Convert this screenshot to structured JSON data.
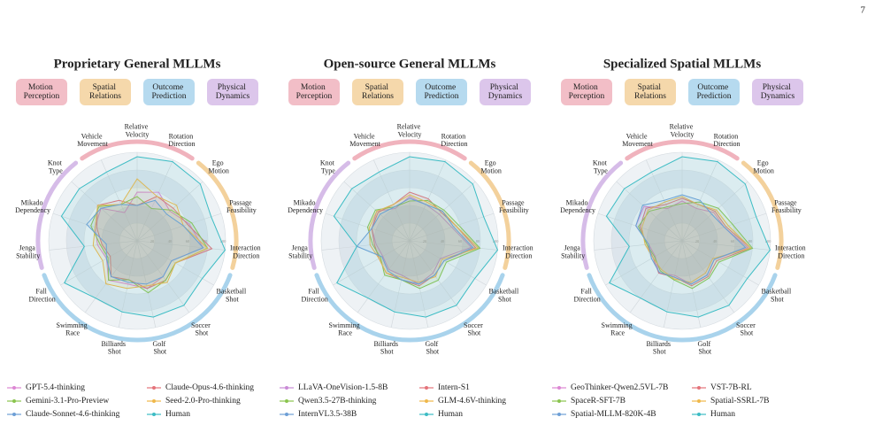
{
  "page_number": "7",
  "chart_data": [
    {
      "type": "radar",
      "title": "Proprietary General MLLMs",
      "groups": [
        {
          "name": "Motion Perception",
          "color": "#f0b3bd",
          "axes": [
            "Vehicle Movement",
            "Relative Velocity",
            "Rotation Direction"
          ]
        },
        {
          "name": "Spatial Relations",
          "color": "#f3d19c",
          "axes": [
            "Ego Motion",
            "Passage Feasibility",
            "Interaction Direction"
          ]
        },
        {
          "name": "Outcome Prediction",
          "color": "#a9d3ec",
          "axes": [
            "Basketball Shot",
            "Soccer Shot",
            "Golf Shot",
            "Billiards Shot",
            "Swimming Race",
            "Fall Direction"
          ]
        },
        {
          "name": "Physical Dynamics",
          "color": "#d6bce8",
          "axes": [
            "Jenga Stability",
            "Mikado Dependency",
            "Knot Type"
          ]
        }
      ],
      "categories": [
        "Relative Velocity",
        "Rotation Direction",
        "Ego Motion",
        "Passage Feasibility",
        "Interaction Direction",
        "Basketball Shot",
        "Soccer Shot",
        "Golf Shot",
        "Billiards Shot",
        "Swimming Race",
        "Fall Direction",
        "Jenga Stability",
        "Mikado Dependency",
        "Knot Type",
        "Vehicle Movement"
      ],
      "rlim": [
        0,
        100
      ],
      "rticks": [
        20,
        40,
        60,
        80,
        100
      ],
      "series": [
        {
          "name": "GPT-5.4-thinking",
          "color": "#dc86d3",
          "values": [
            55,
            60,
            50,
            62,
            75,
            45,
            50,
            55,
            50,
            55,
            40,
            45,
            50,
            55,
            35
          ]
        },
        {
          "name": "Claude-Opus-4.6-thinking",
          "color": "#e4737a",
          "values": [
            40,
            55,
            55,
            60,
            85,
            50,
            55,
            55,
            45,
            50,
            35,
            40,
            48,
            60,
            50
          ]
        },
        {
          "name": "Gemini-3.1-Pro-Preview",
          "color": "#8ac44e",
          "values": [
            50,
            40,
            52,
            65,
            80,
            50,
            55,
            60,
            45,
            55,
            38,
            42,
            55,
            58,
            45
          ]
        },
        {
          "name": "Seed-2.0-Pro-thinking",
          "color": "#efb84a",
          "values": [
            70,
            55,
            60,
            55,
            80,
            50,
            58,
            52,
            55,
            60,
            45,
            50,
            50,
            60,
            45
          ]
        },
        {
          "name": "Claude-Sonnet-4.6-thinking",
          "color": "#6d9fd6",
          "values": [
            40,
            50,
            45,
            55,
            75,
            45,
            50,
            50,
            48,
            50,
            40,
            35,
            60,
            55,
            45
          ]
        },
        {
          "name": "Human",
          "color": "#3cbcc4",
          "values": [
            95,
            98,
            96,
            88,
            100,
            85,
            90,
            88,
            82,
            80,
            95,
            60,
            90,
            88,
            85
          ]
        }
      ]
    },
    {
      "type": "radar",
      "title": "Open-source General MLLMs",
      "groups": [
        {
          "name": "Motion Perception",
          "color": "#f0b3bd",
          "axes": [
            "Vehicle Movement",
            "Relative Velocity",
            "Rotation Direction"
          ]
        },
        {
          "name": "Spatial Relations",
          "color": "#f3d19c",
          "axes": [
            "Ego Motion",
            "Passage Feasibility",
            "Interaction Direction"
          ]
        },
        {
          "name": "Outcome Prediction",
          "color": "#a9d3ec",
          "axes": [
            "Basketball Shot",
            "Soccer Shot",
            "Golf Shot",
            "Billiards Shot",
            "Swimming Race",
            "Fall Direction"
          ]
        },
        {
          "name": "Physical Dynamics",
          "color": "#d6bce8",
          "axes": [
            "Jenga Stability",
            "Mikado Dependency",
            "Knot Type"
          ]
        }
      ],
      "categories": [
        "Relative Velocity",
        "Rotation Direction",
        "Ego Motion",
        "Passage Feasibility",
        "Interaction Direction",
        "Basketball Shot",
        "Soccer Shot",
        "Golf Shot",
        "Billiards Shot",
        "Swimming Race",
        "Fall Direction",
        "Jenga Stability",
        "Mikado Dependency",
        "Knot Type",
        "Vehicle Movement"
      ],
      "rlim": [
        0,
        100
      ],
      "rticks": [
        20,
        40,
        60,
        80,
        100
      ],
      "series": [
        {
          "name": "LLaVA-OneVision-1.5-8B",
          "color": "#c98ad6",
          "values": [
            50,
            45,
            45,
            50,
            70,
            40,
            45,
            50,
            40,
            40,
            35,
            38,
            45,
            50,
            40
          ]
        },
        {
          "name": "Intern-S1",
          "color": "#e4737a",
          "values": [
            55,
            52,
            48,
            55,
            75,
            45,
            48,
            52,
            45,
            45,
            40,
            40,
            45,
            48,
            45
          ]
        },
        {
          "name": "Qwen3.5-27B-thinking",
          "color": "#8ac44e",
          "values": [
            45,
            50,
            52,
            58,
            80,
            48,
            55,
            55,
            45,
            48,
            38,
            42,
            50,
            52,
            42
          ]
        },
        {
          "name": "GLM-4.6V-thinking",
          "color": "#efb84a",
          "values": [
            52,
            48,
            50,
            55,
            78,
            42,
            50,
            48,
            42,
            45,
            40,
            45,
            48,
            50,
            45
          ]
        },
        {
          "name": "InternVL3.5-38B",
          "color": "#6d9fd6",
          "values": [
            48,
            45,
            50,
            52,
            72,
            45,
            48,
            50,
            45,
            42,
            36,
            60,
            45,
            45,
            42
          ]
        },
        {
          "name": "Human",
          "color": "#3cbcc4",
          "values": [
            95,
            98,
            96,
            88,
            100,
            85,
            90,
            88,
            82,
            80,
            95,
            60,
            90,
            88,
            85
          ]
        }
      ]
    },
    {
      "type": "radar",
      "title": "Specialized Spatial MLLMs",
      "groups": [
        {
          "name": "Motion Perception",
          "color": "#f0b3bd",
          "axes": [
            "Vehicle Movement",
            "Relative Velocity",
            "Rotation Direction"
          ]
        },
        {
          "name": "Spatial Relations",
          "color": "#f3d19c",
          "axes": [
            "Ego Motion",
            "Passage Feasibility",
            "Interaction Direction"
          ]
        },
        {
          "name": "Outcome Prediction",
          "color": "#a9d3ec",
          "axes": [
            "Basketball Shot",
            "Soccer Shot",
            "Golf Shot",
            "Billiards Shot",
            "Swimming Race",
            "Fall Direction"
          ]
        },
        {
          "name": "Physical Dynamics",
          "color": "#d6bce8",
          "axes": [
            "Jenga Stability",
            "Mikado Dependency",
            "Knot Type"
          ]
        }
      ],
      "categories": [
        "Relative Velocity",
        "Rotation Direction",
        "Ego Motion",
        "Passage Feasibility",
        "Interaction Direction",
        "Basketball Shot",
        "Soccer Shot",
        "Golf Shot",
        "Billiards Shot",
        "Swimming Race",
        "Fall Direction",
        "Jenga Stability",
        "Mikado Dependency",
        "Knot Type",
        "Vehicle Movement"
      ],
      "rlim": [
        0,
        100
      ],
      "rticks": [
        20,
        40,
        60,
        80,
        100
      ],
      "series": [
        {
          "name": "GeoThinker-Qwen2.5VL-7B",
          "color": "#dc86d3",
          "values": [
            45,
            40,
            48,
            50,
            75,
            42,
            48,
            50,
            40,
            45,
            35,
            38,
            55,
            58,
            40
          ]
        },
        {
          "name": "VST-7B-RL",
          "color": "#e4737a",
          "values": [
            48,
            45,
            50,
            52,
            78,
            45,
            50,
            52,
            42,
            45,
            38,
            40,
            50,
            55,
            45
          ]
        },
        {
          "name": "SpaceR-SFT-7B",
          "color": "#8ac44e",
          "values": [
            42,
            48,
            55,
            60,
            80,
            48,
            52,
            55,
            45,
            42,
            36,
            40,
            52,
            50,
            42
          ]
        },
        {
          "name": "Spatial-SSRL-7B",
          "color": "#efb84a",
          "values": [
            50,
            45,
            52,
            55,
            78,
            40,
            45,
            48,
            44,
            40,
            38,
            42,
            48,
            52,
            48
          ]
        },
        {
          "name": "Spatial-MLLM-820K-4B",
          "color": "#6d9fd6",
          "values": [
            52,
            50,
            45,
            50,
            72,
            42,
            48,
            50,
            42,
            44,
            40,
            38,
            55,
            60,
            50
          ]
        },
        {
          "name": "Human",
          "color": "#3cbcc4",
          "values": [
            95,
            98,
            96,
            88,
            100,
            85,
            90,
            88,
            82,
            80,
            95,
            60,
            90,
            88,
            85
          ]
        }
      ]
    }
  ]
}
